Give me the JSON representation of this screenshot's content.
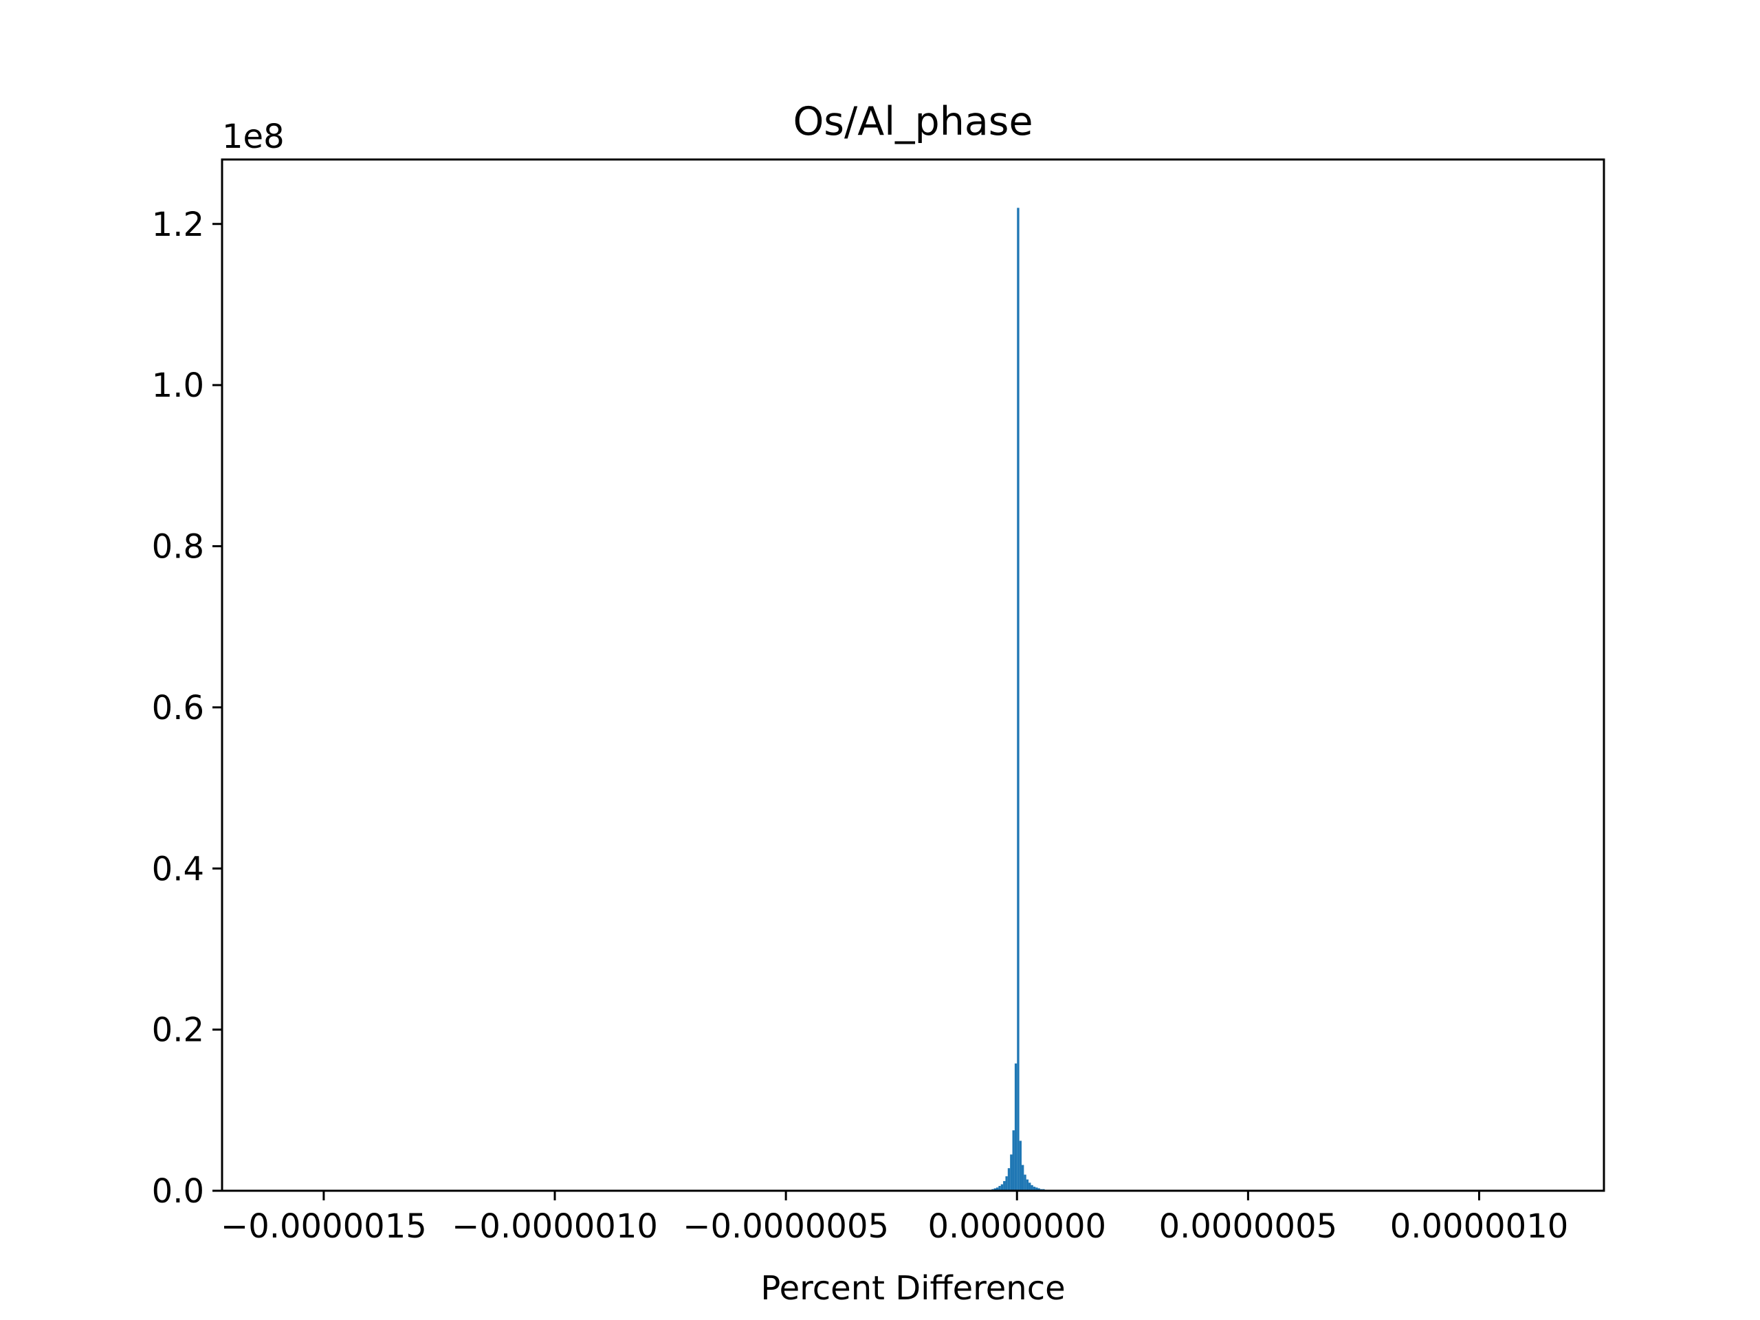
{
  "chart_data": {
    "type": "bar",
    "title": "Os/Al_phase",
    "xlabel": "Percent Difference",
    "ylabel": "",
    "y_offset_label": "1e8",
    "y_scale": 100000000,
    "xlim": [
      -1.72e-06,
      1.27e-06
    ],
    "ylim": [
      0,
      1.28
    ],
    "xticks": [
      {
        "value": -1.5e-06,
        "label": "−0.0000015"
      },
      {
        "value": -1e-06,
        "label": "−0.0000010"
      },
      {
        "value": -5e-07,
        "label": "−0.0000005"
      },
      {
        "value": 0.0,
        "label": "0.0000000"
      },
      {
        "value": 5e-07,
        "label": "0.0000005"
      },
      {
        "value": 1e-06,
        "label": "0.0000010"
      }
    ],
    "yticks": [
      {
        "value": 0.0,
        "label": "0.0"
      },
      {
        "value": 0.2,
        "label": "0.2"
      },
      {
        "value": 0.4,
        "label": "0.4"
      },
      {
        "value": 0.6,
        "label": "0.6"
      },
      {
        "value": 0.8,
        "label": "0.8"
      },
      {
        "value": 1.0,
        "label": "1.0"
      },
      {
        "value": 1.2,
        "label": "1.2"
      }
    ],
    "bin_width": 5e-09,
    "bins_x": [
      -5.5e-08,
      -5e-08,
      -4.5e-08,
      -4e-08,
      -3.5e-08,
      -3e-08,
      -2.5e-08,
      -2e-08,
      -1.5e-08,
      -1e-08,
      -5e-09,
      0.0,
      5e-09,
      1e-08,
      1.5e-08,
      2e-08,
      2.5e-08,
      3e-08,
      3.5e-08,
      4e-08,
      4.5e-08,
      5e-08,
      5.5e-08,
      6e-08,
      6.5e-08
    ],
    "values": [
      0.002,
      0.003,
      0.004,
      0.006,
      0.008,
      0.012,
      0.018,
      0.028,
      0.045,
      0.075,
      0.158,
      1.22,
      0.062,
      0.032,
      0.02,
      0.014,
      0.01,
      0.007,
      0.005,
      0.004,
      0.003,
      0.002,
      0.002,
      0.001,
      0.001
    ],
    "bar_color": "#1f77b4",
    "grid": false,
    "legend": false
  }
}
